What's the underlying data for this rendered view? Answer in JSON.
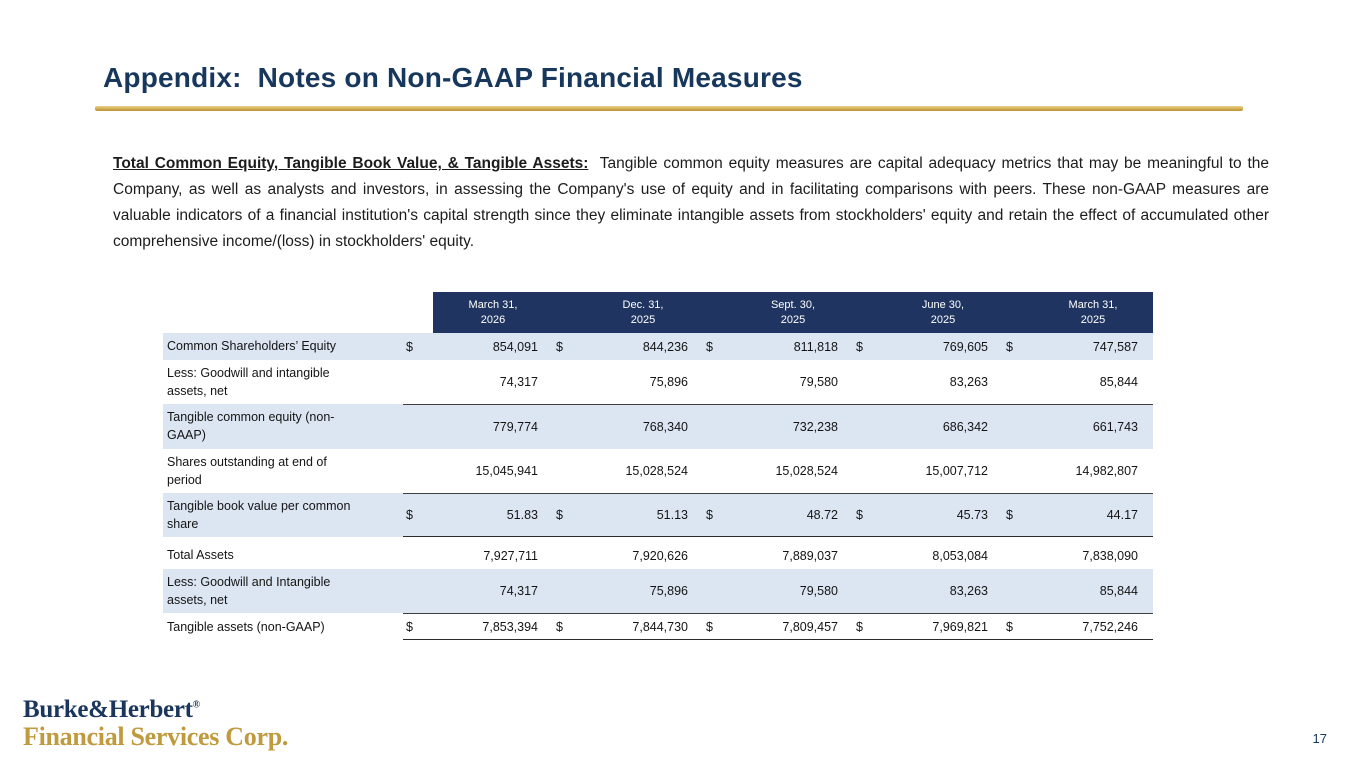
{
  "slide": {
    "title": "Appendix:  Notes on Non-GAAP Financial Measures",
    "page_number": "17"
  },
  "paragraph": {
    "lead": "Total Common Equity, Tangible Book Value, & Tangible Assets:",
    "body": "Tangible common equity measures are capital adequacy metrics that may be meaningful to the Company, as well as analysts and investors, in assessing the Company's use of equity and in facilitating comparisons with peers. These non-GAAP measures are valuable indicators of a financial institution's capital strength since they eliminate intangible assets from stockholders' equity and retain the effect of accumulated other comprehensive income/(loss) in stockholders' equity."
  },
  "table": {
    "columns": [
      {
        "line1": "March 31,",
        "line2": "2026"
      },
      {
        "line1": "Dec. 31,",
        "line2": "2025"
      },
      {
        "line1": "Sept. 30,",
        "line2": "2025"
      },
      {
        "line1": "June 30,",
        "line2": "2025"
      },
      {
        "line1": "March 31,",
        "line2": "2025"
      }
    ],
    "rows": [
      {
        "label": "Common Shareholders’ Equity",
        "dollar": true,
        "shade": true,
        "line_above": false,
        "line_below": false,
        "gap_above": false,
        "values": [
          "854,091",
          "844,236",
          "811,818",
          "769,605",
          "747,587"
        ]
      },
      {
        "label": "Less: Goodwill and intangible\nassets, net",
        "dollar": false,
        "shade": false,
        "line_above": false,
        "line_below": false,
        "gap_above": false,
        "values": [
          "74,317",
          "75,896",
          "79,580",
          "83,263",
          "85,844"
        ]
      },
      {
        "label": "Tangible common equity (non-\nGAAP)",
        "dollar": false,
        "shade": true,
        "line_above": true,
        "line_below": false,
        "gap_above": false,
        "values": [
          "779,774",
          "768,340",
          "732,238",
          "686,342",
          "661,743"
        ]
      },
      {
        "label": "Shares outstanding at end of\nperiod",
        "dollar": false,
        "shade": false,
        "line_above": false,
        "line_below": false,
        "gap_above": false,
        "values": [
          "15,045,941",
          "15,028,524",
          "15,028,524",
          "15,007,712",
          "14,982,807"
        ]
      },
      {
        "label": "Tangible book value per common\nshare",
        "dollar": true,
        "shade": true,
        "line_above": true,
        "line_below": true,
        "gap_above": false,
        "values": [
          "51.83",
          "51.13",
          "48.72",
          "45.73",
          "44.17"
        ]
      },
      {
        "label": "Total Assets",
        "dollar": false,
        "shade": false,
        "line_above": false,
        "line_below": false,
        "gap_above": true,
        "values": [
          "7,927,711",
          "7,920,626",
          "7,889,037",
          "8,053,084",
          "7,838,090"
        ]
      },
      {
        "label": "Less: Goodwill and Intangible\nassets, net",
        "dollar": false,
        "shade": true,
        "line_above": false,
        "line_below": false,
        "gap_above": false,
        "values": [
          "74,317",
          "75,896",
          "79,580",
          "83,263",
          "85,844"
        ]
      },
      {
        "label": "Tangible assets (non-GAAP)",
        "dollar": true,
        "shade": false,
        "line_above": true,
        "line_below": true,
        "gap_above": false,
        "values": [
          "7,853,394",
          "7,844,730",
          "7,809,457",
          "7,969,821",
          "7,752,246"
        ]
      }
    ]
  },
  "footer": {
    "logo_name": "Burke&Herbert",
    "logo_reg": "®",
    "logo_subtitle": "Financial Services Corp."
  },
  "colors": {
    "navy_header": "#1F3461",
    "title_navy": "#17375D",
    "gold_accent": "#C7A13F",
    "row_shade": "#DCE6F2"
  }
}
